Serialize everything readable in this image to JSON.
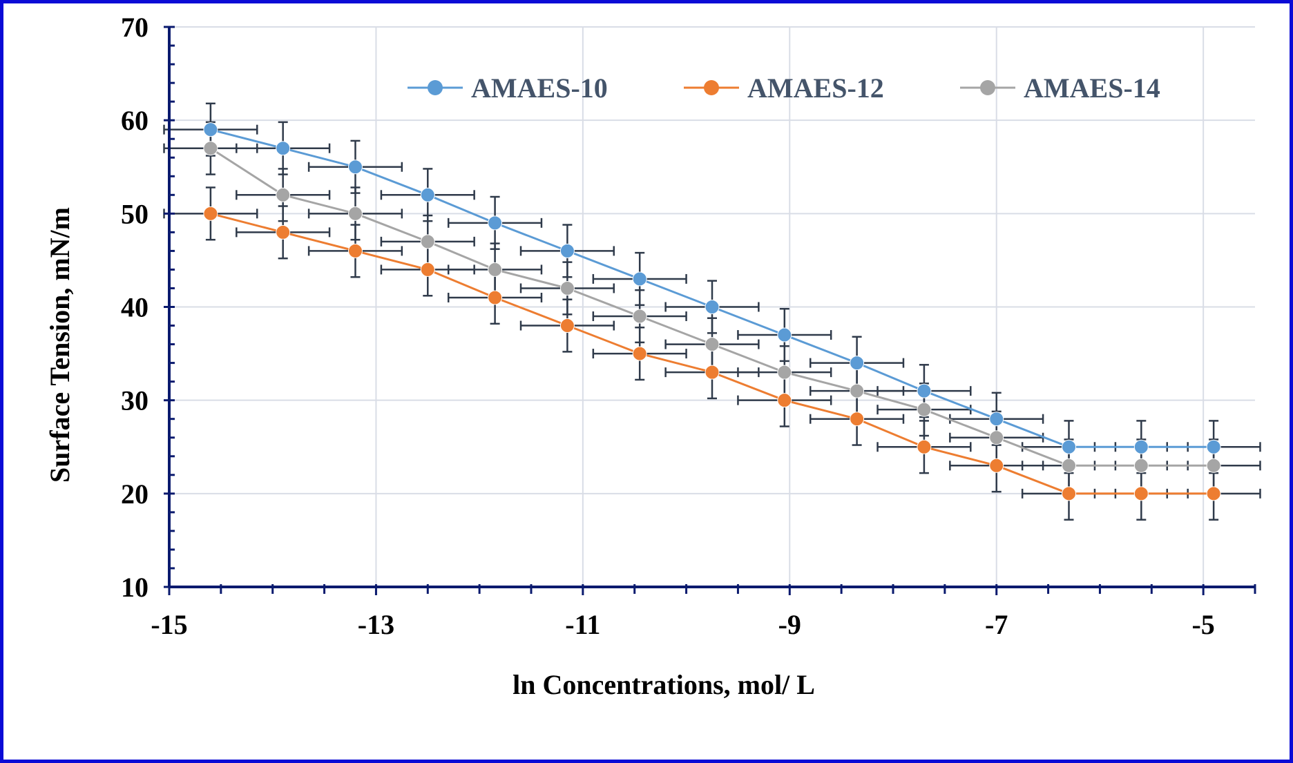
{
  "chart_data": {
    "type": "line",
    "title": "",
    "xlabel": "ln Concentrations, mol/ L",
    "ylabel": "Surface Tension, mN/m",
    "xlim": [
      -15,
      -4.5
    ],
    "ylim": [
      10,
      70
    ],
    "x_ticks": [
      -15,
      -13,
      -11,
      -9,
      -7,
      -5
    ],
    "x_tick_labels": [
      "-15",
      "-13",
      "-11",
      "-9",
      "-7",
      "-5"
    ],
    "y_ticks": [
      10,
      20,
      30,
      40,
      50,
      60,
      70
    ],
    "y_tick_labels": [
      "10",
      "20",
      "30",
      "40",
      "50",
      "60",
      "70"
    ],
    "grid": true,
    "legend_position": "top-right",
    "x": [
      -14.6,
      -13.9,
      -13.2,
      -12.5,
      -11.85,
      -11.15,
      -10.45,
      -9.75,
      -9.05,
      -8.35,
      -7.7,
      -7.0,
      -6.3,
      -5.6,
      -4.9
    ],
    "error_x": 0.45,
    "error_y": 2.8,
    "series": [
      {
        "name": "AMAES-10",
        "color": "#5b9bd5",
        "values": [
          59,
          57,
          55,
          52,
          49,
          46,
          43,
          40,
          37,
          34,
          31,
          28,
          25,
          25,
          25
        ]
      },
      {
        "name": "AMAES-12",
        "color": "#ed7d31",
        "values": [
          50,
          48,
          46,
          44,
          41,
          38,
          35,
          33,
          30,
          28,
          25,
          23,
          20,
          20,
          20
        ]
      },
      {
        "name": "AMAES-14",
        "color": "#a5a5a5",
        "values": [
          57,
          52,
          50,
          47,
          44,
          42,
          39,
          36,
          33,
          31,
          29,
          26,
          23,
          23,
          23
        ]
      }
    ],
    "error_bar_color": "#2f3a4a",
    "axis_color": "#0a1a6e",
    "grid_color": "#d9dde6"
  }
}
